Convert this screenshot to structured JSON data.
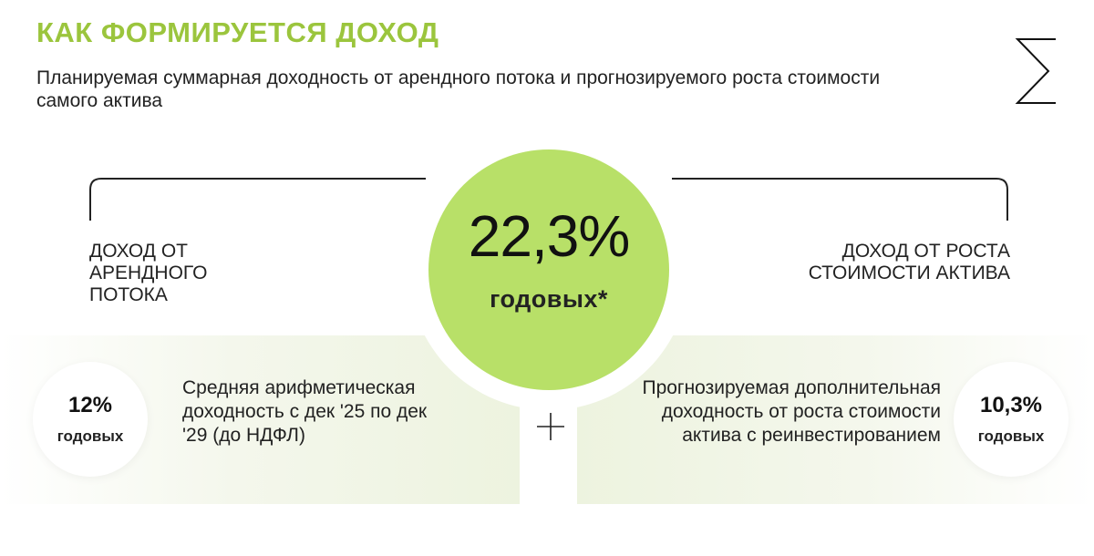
{
  "header": {
    "title": "КАК ФОРМИРУЕТСЯ ДОХОД",
    "subtitle": "Планируемая суммарная доходность от арендного потока и прогнозируемого роста стоимости самого актива"
  },
  "summary": {
    "value": "22,3%",
    "unit": "годовых*"
  },
  "rental": {
    "label": "ДОХОД ОТ АРЕНДНОГО ПОТОКА",
    "value": "12%",
    "unit": "годовых",
    "description": "Средняя арифметическая доходность с дек '25 по дек '29 (до НДФЛ)"
  },
  "growth": {
    "label": "ДОХОД ОТ РОСТА СТОИМОСТИ АКТИВА",
    "value": "10,3%",
    "unit": "годовых",
    "description": "Прогнозируемая дополнительная доходность от роста стоимости актива с реинвестированием"
  },
  "icons": {
    "sigma": "sigma-icon",
    "plus": "plus-icon"
  },
  "colors": {
    "accent_title": "#9bc53d",
    "accent_circle": "#b8e068",
    "panel": "#edf3df"
  }
}
